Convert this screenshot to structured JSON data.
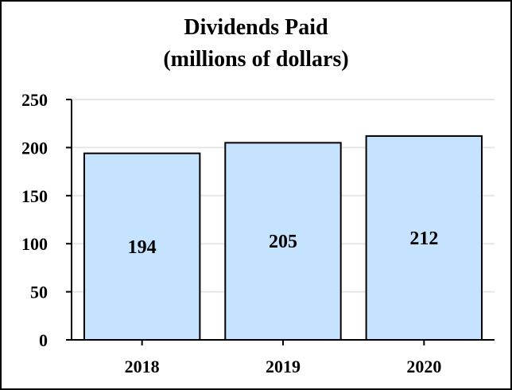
{
  "chart_data": {
    "type": "bar",
    "title": "Dividends Paid",
    "subtitle": "(millions of dollars)",
    "categories": [
      "2018",
      "2019",
      "2020"
    ],
    "values": [
      194,
      205,
      212
    ],
    "data_labels": [
      "194",
      "205",
      "212"
    ],
    "y_ticks": [
      0,
      50,
      100,
      150,
      200,
      250
    ],
    "ylim": [
      0,
      250
    ],
    "grid": true,
    "bar_color": "#c5e3ff",
    "bar_stroke": "#000000",
    "grid_color": "#e6e6e6"
  }
}
